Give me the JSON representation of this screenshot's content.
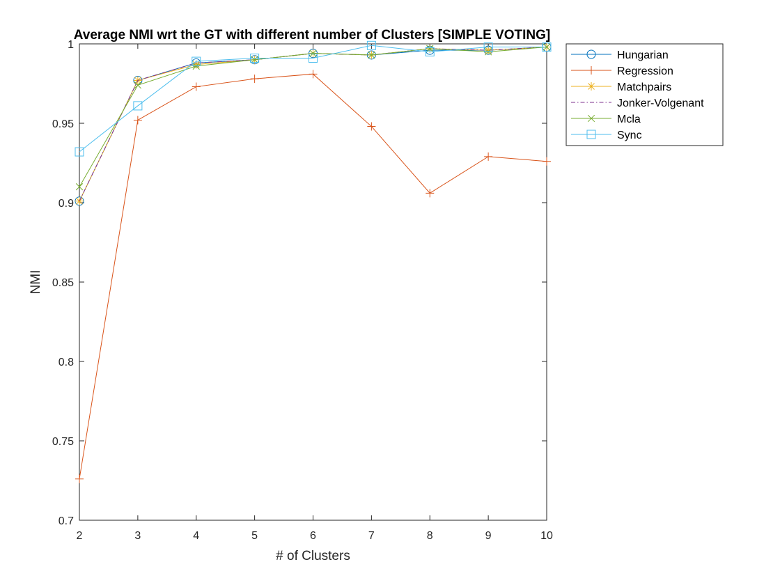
{
  "chart_data": {
    "type": "line",
    "title": "Average NMI wrt the GT with different number of Clusters [SIMPLE VOTING]",
    "xlabel": "# of Clusters",
    "ylabel": "NMI",
    "xlim": [
      2,
      10
    ],
    "ylim": [
      0.7,
      1
    ],
    "x": [
      2,
      3,
      4,
      5,
      6,
      7,
      8,
      9,
      10
    ],
    "xticks": [
      "2",
      "3",
      "4",
      "5",
      "6",
      "7",
      "8",
      "9",
      "10"
    ],
    "yticks": [
      "0.7",
      "0.75",
      "0.8",
      "0.85",
      "0.9",
      "0.95",
      "1"
    ],
    "grid": false,
    "legend_position": "outside-top-right",
    "series": [
      {
        "name": "Hungarian",
        "color": "#0072BD",
        "marker": "circle",
        "dash": "solid",
        "values": [
          0.901,
          0.977,
          0.988,
          0.99,
          0.994,
          0.993,
          0.996,
          0.996,
          0.998
        ]
      },
      {
        "name": "Regression",
        "color": "#D95319",
        "marker": "plus",
        "dash": "solid",
        "values": [
          0.726,
          0.952,
          0.973,
          0.978,
          0.981,
          0.948,
          0.906,
          0.929,
          0.926
        ]
      },
      {
        "name": "Matchpairs",
        "color": "#EDB120",
        "marker": "star",
        "dash": "solid",
        "values": [
          0.901,
          0.977,
          0.987,
          0.99,
          0.994,
          0.993,
          0.997,
          0.996,
          0.998
        ]
      },
      {
        "name": "Jonker-Volgenant",
        "color": "#7E2F8E",
        "marker": "none",
        "dash": "dashdot",
        "values": [
          0.901,
          0.977,
          0.988,
          0.99,
          0.994,
          0.993,
          0.997,
          0.996,
          0.998
        ]
      },
      {
        "name": "Mcla",
        "color": "#77AC30",
        "marker": "x",
        "dash": "solid",
        "values": [
          0.91,
          0.974,
          0.986,
          0.99,
          0.994,
          0.993,
          0.997,
          0.995,
          0.998
        ]
      },
      {
        "name": "Sync",
        "color": "#4DBEEE",
        "marker": "square",
        "dash": "solid",
        "values": [
          0.932,
          0.961,
          0.989,
          0.991,
          0.991,
          0.999,
          0.995,
          0.998,
          0.998
        ]
      }
    ]
  }
}
